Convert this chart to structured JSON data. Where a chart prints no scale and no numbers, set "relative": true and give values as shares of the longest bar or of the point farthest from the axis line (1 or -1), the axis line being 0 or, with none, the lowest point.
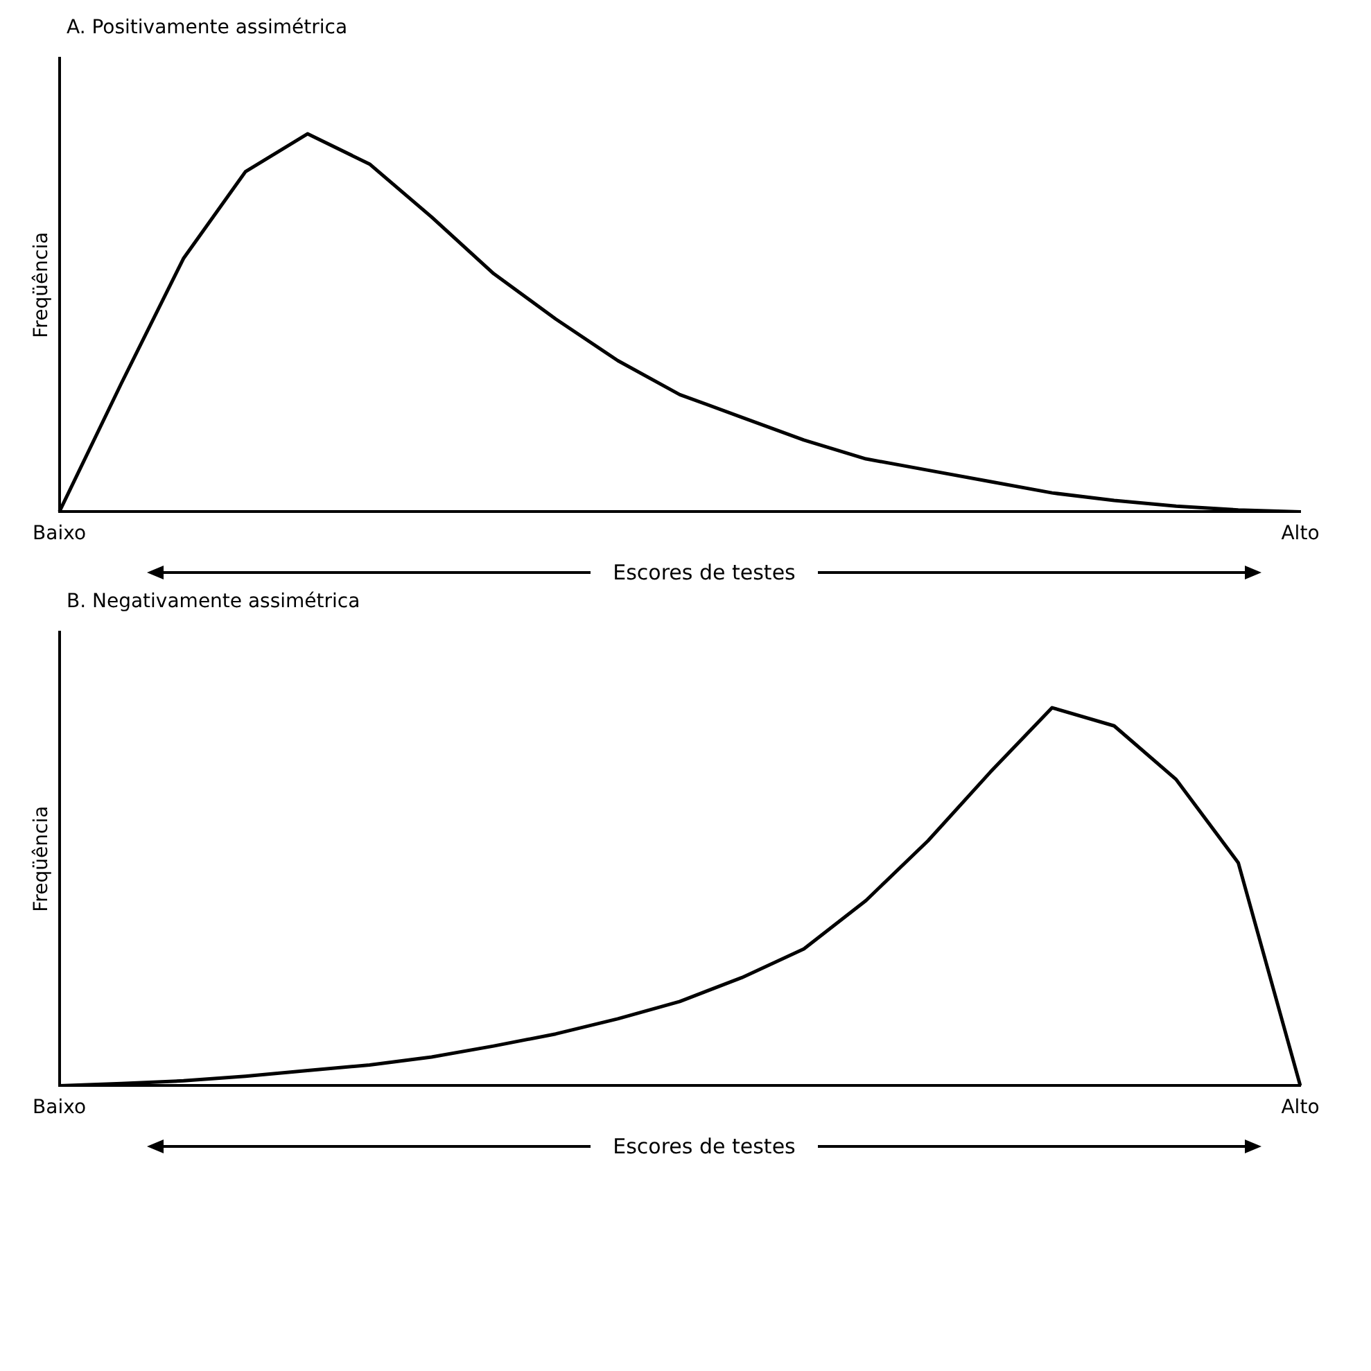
{
  "chart_data": [
    {
      "type": "line",
      "title": "A. Positivamente assimétrica",
      "xlabel": "Escores de testes",
      "ylabel": "Freqüência",
      "relative": true,
      "tick_labels": "x",
      "grid": false,
      "legend": false,
      "categories": [
        "Baixo",
        null,
        null,
        null,
        null,
        null,
        null,
        null,
        null,
        null,
        null,
        null,
        null,
        null,
        null,
        null,
        null,
        null,
        null,
        null,
        "Alto"
      ],
      "series": [
        {
          "color": "#000000",
          "values": [
            0,
            0.34,
            0.67,
            0.9,
            1,
            0.92,
            0.78,
            0.63,
            0.51,
            0.4,
            0.31,
            0.25,
            0.19,
            0.14,
            0.11,
            0.08,
            0.05,
            0.03,
            0.015,
            0.005,
            0
          ]
        }
      ]
    },
    {
      "type": "line",
      "title": "B. Negativamente assimétrica",
      "xlabel": "Escores de testes",
      "ylabel": "Freqüência",
      "relative": true,
      "tick_labels": "x",
      "grid": false,
      "legend": false,
      "categories": [
        "Baixo",
        null,
        null,
        null,
        null,
        null,
        null,
        null,
        null,
        null,
        null,
        null,
        null,
        null,
        null,
        null,
        null,
        null,
        null,
        null,
        "Alto"
      ],
      "series": [
        {
          "color": "#000000",
          "values": [
            0,
            0.006,
            0.013,
            0.025,
            0.04,
            0.055,
            0.076,
            0.105,
            0.137,
            0.177,
            0.223,
            0.286,
            0.362,
            0.49,
            0.648,
            0.829,
            1,
            0.952,
            0.81,
            0.59,
            0
          ]
        }
      ]
    }
  ]
}
